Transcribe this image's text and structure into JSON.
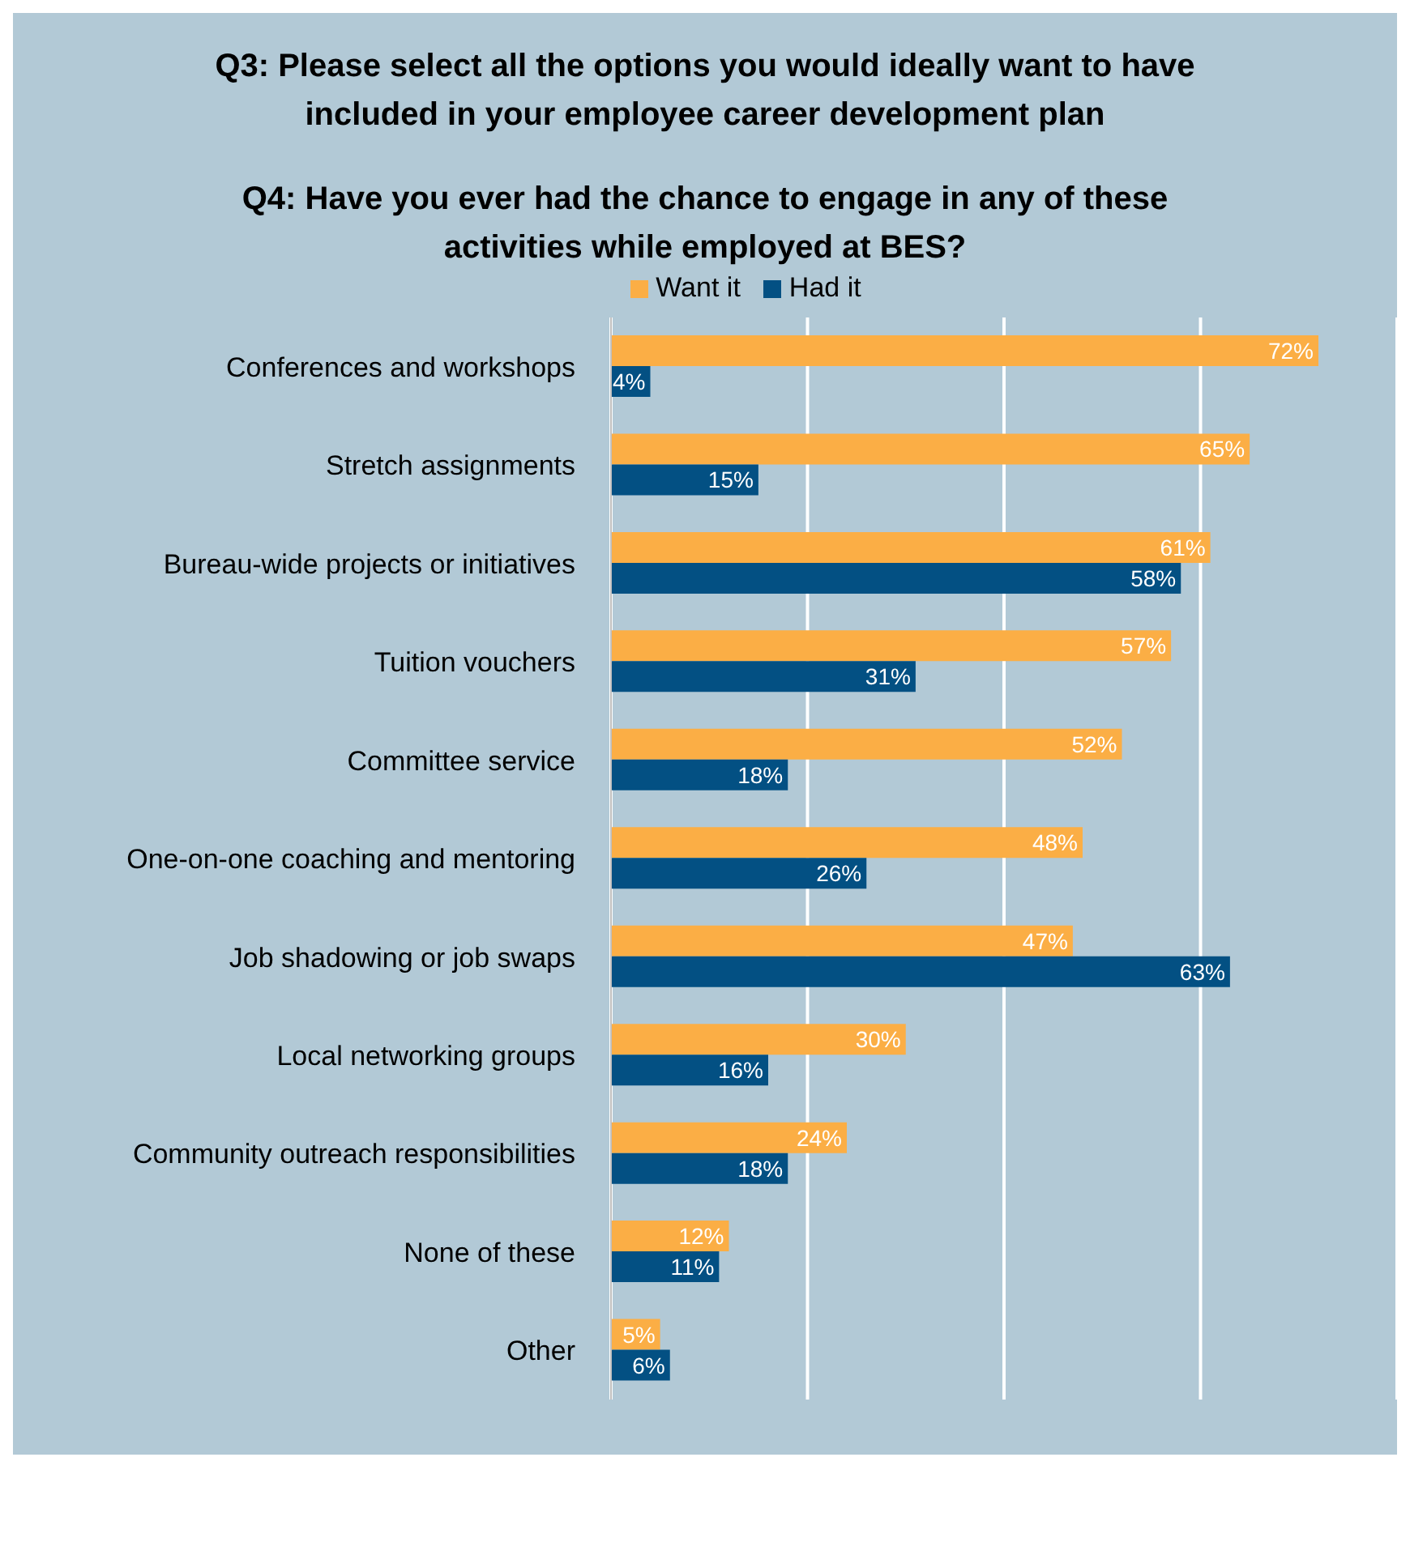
{
  "chart_data": {
    "type": "bar",
    "orientation": "horizontal",
    "title": "Q3: Please select all the options you would ideally want to have included in your employee career development plan",
    "subtitle": "Q4: Have you ever had the chance to engage in any of these activities while employed at BES?",
    "categories": [
      "Conferences and workshops",
      "Stretch assignments",
      "Bureau-wide projects or initiatives",
      "Tuition vouchers",
      "Committee service",
      "One-on-one coaching and mentoring",
      "Job shadowing or job swaps",
      "Local networking groups",
      "Community outreach responsibilities",
      "None of these",
      "Other"
    ],
    "series": [
      {
        "name": "Want it",
        "color": "#fbae45",
        "values": [
          72,
          65,
          61,
          57,
          52,
          48,
          47,
          30,
          24,
          12,
          5
        ],
        "value_labels": [
          "72%",
          "65%",
          "61%",
          "57%",
          "52%",
          "48%",
          "47%",
          "30%",
          "24%",
          "12%",
          "5%"
        ]
      },
      {
        "name": "Had it",
        "color": "#035083",
        "values": [
          4,
          15,
          58,
          31,
          18,
          26,
          63,
          16,
          18,
          11,
          6
        ],
        "value_labels": [
          "4%",
          "15%",
          "58%",
          "31%",
          "18%",
          "26%",
          "63%",
          "16%",
          "18%",
          "11%",
          "6%"
        ]
      }
    ],
    "xlim": [
      0,
      80
    ],
    "xticks": [
      {
        "value": 0,
        "label": null
      },
      {
        "value": 20,
        "label": null
      },
      {
        "value": 40,
        "label": null
      },
      {
        "value": 60,
        "label": null
      },
      {
        "value": 80,
        "label": null
      }
    ],
    "tick_labels": "y",
    "grid": "x",
    "legend": "top"
  }
}
